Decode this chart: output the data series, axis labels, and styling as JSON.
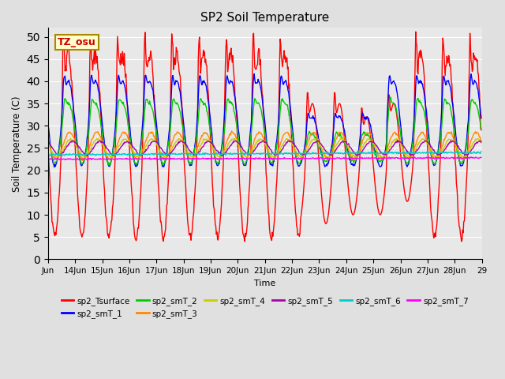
{
  "title": "SP2 Soil Temperature",
  "ylabel": "Soil Temperature (C)",
  "xlabel": "Time",
  "tz_label": "TZ_osu",
  "ylim": [
    0,
    52
  ],
  "yticks": [
    0,
    5,
    10,
    15,
    20,
    25,
    30,
    35,
    40,
    45,
    50
  ],
  "background_color": "#e0e0e0",
  "plot_bg_color": "#e8e8e8",
  "series_colors": {
    "sp2_Tsurface": "#ff0000",
    "sp2_smT_1": "#0000ff",
    "sp2_smT_2": "#00cc00",
    "sp2_smT_3": "#ff8800",
    "sp2_smT_4": "#cccc00",
    "sp2_smT_5": "#aa00aa",
    "sp2_smT_6": "#00cccc",
    "sp2_smT_7": "#ff00ff"
  },
  "legend_entries": [
    "sp2_Tsurface",
    "sp2_smT_1",
    "sp2_smT_2",
    "sp2_smT_3",
    "sp2_smT_4",
    "sp2_smT_5",
    "sp2_smT_6",
    "sp2_smT_7"
  ],
  "x_start_day": 13,
  "n_days": 16,
  "x_tick_days": [
    13,
    14,
    15,
    16,
    17,
    18,
    19,
    20,
    21,
    22,
    23,
    24,
    25,
    26,
    27,
    28,
    29
  ],
  "x_tick_labels": [
    "Jun",
    "14Jun",
    "15Jun",
    "16Jun",
    "17Jun",
    "18Jun",
    "19Jun",
    "20Jun",
    "21Jun",
    "22Jun",
    "23Jun",
    "24Jun",
    "25Jun",
    "26Jun",
    "27Jun",
    "28Jun",
    "29"
  ]
}
